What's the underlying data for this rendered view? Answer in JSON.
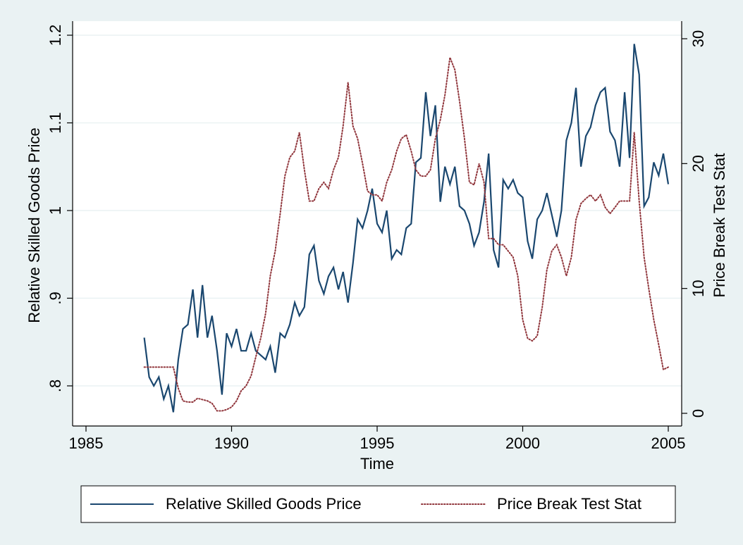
{
  "chart_data": {
    "type": "line",
    "x_label": "Time",
    "y_label": "Relative Skilled Goods Price",
    "y2_label": "Price Break Test Stat",
    "xlim": [
      1985,
      2005
    ],
    "xticks": [
      1985,
      1990,
      1995,
      2000,
      2005
    ],
    "ylim": [
      0.8,
      1.2
    ],
    "yticks": [
      {
        "value": 0.8,
        "label": ".8"
      },
      {
        "value": 0.9,
        "label": ".9"
      },
      1,
      1.1,
      1.2
    ],
    "y2lim": [
      0,
      30
    ],
    "y2ticks": [
      0,
      10,
      20,
      30
    ],
    "grid": true,
    "legend": "bottom",
    "x": [
      1987,
      1987.17,
      1987.33,
      1987.5,
      1987.67,
      1987.83,
      1988,
      1988.17,
      1988.33,
      1988.5,
      1988.67,
      1988.83,
      1989,
      1989.17,
      1989.33,
      1989.5,
      1989.67,
      1989.83,
      1990,
      1990.17,
      1990.33,
      1990.5,
      1990.67,
      1990.83,
      1991,
      1991.17,
      1991.33,
      1991.5,
      1991.67,
      1991.83,
      1992,
      1992.17,
      1992.33,
      1992.5,
      1992.67,
      1992.83,
      1993,
      1993.17,
      1993.33,
      1993.5,
      1993.67,
      1993.83,
      1994,
      1994.17,
      1994.33,
      1994.5,
      1994.67,
      1994.83,
      1995,
      1995.17,
      1995.33,
      1995.5,
      1995.67,
      1995.83,
      1996,
      1996.17,
      1996.33,
      1996.5,
      1996.67,
      1996.83,
      1997,
      1997.17,
      1997.33,
      1997.5,
      1997.67,
      1997.83,
      1998,
      1998.17,
      1998.33,
      1998.5,
      1998.67,
      1998.83,
      1999,
      1999.17,
      1999.33,
      1999.5,
      1999.67,
      1999.83,
      2000,
      2000.17,
      2000.33,
      2000.5,
      2000.67,
      2000.83,
      2001,
      2001.17,
      2001.33,
      2001.5,
      2001.67,
      2001.83,
      2002,
      2002.17,
      2002.33,
      2002.5,
      2002.67,
      2002.83,
      2003,
      2003.17,
      2003.33,
      2003.5,
      2003.67,
      2003.83,
      2004,
      2004.17,
      2004.33,
      2004.5,
      2004.67,
      2004.83,
      2005
    ],
    "series": [
      {
        "name": "Relative Skilled Goods Price",
        "color": "#1a476f",
        "style": "solid",
        "values": [
          0.855,
          0.81,
          0.8,
          0.81,
          0.785,
          0.8,
          0.77,
          0.83,
          0.865,
          0.87,
          0.91,
          0.855,
          0.915,
          0.855,
          0.88,
          0.84,
          0.79,
          0.86,
          0.845,
          0.865,
          0.84,
          0.84,
          0.86,
          0.84,
          0.835,
          0.83,
          0.845,
          0.815,
          0.86,
          0.855,
          0.87,
          0.895,
          0.88,
          0.89,
          0.95,
          0.96,
          0.92,
          0.905,
          0.925,
          0.935,
          0.91,
          0.93,
          0.895,
          0.94,
          0.99,
          0.98,
          1.0,
          1.025,
          0.985,
          0.975,
          1.0,
          0.945,
          0.955,
          0.95,
          0.98,
          0.985,
          1.055,
          1.06,
          1.135,
          1.085,
          1.12,
          1.01,
          1.05,
          1.03,
          1.05,
          1.005,
          1.0,
          0.985,
          0.96,
          0.975,
          1.01,
          1.065,
          0.955,
          0.935,
          1.035,
          1.025,
          1.035,
          1.02,
          1.015,
          0.965,
          0.945,
          0.99,
          1.0,
          1.02,
          0.995,
          0.97,
          1.0,
          1.08,
          1.1,
          1.14,
          1.05,
          1.085,
          1.095,
          1.12,
          1.135,
          1.14,
          1.09,
          1.08,
          1.05,
          1.135,
          1.06,
          1.19,
          1.155,
          1.005,
          1.015,
          1.055,
          1.04,
          1.065,
          1.03
        ]
      },
      {
        "name": "Price Break Test Stat",
        "color": "#90353b",
        "style": "dotted",
        "axis": "y2",
        "values": [
          3.7,
          3.7,
          3.7,
          3.7,
          3.7,
          3.7,
          3.7,
          2.0,
          1.0,
          0.9,
          0.9,
          1.2,
          1.1,
          1.0,
          0.8,
          0.2,
          0.2,
          0.3,
          0.5,
          1.0,
          1.8,
          2.2,
          3.0,
          4.5,
          6,
          8,
          11,
          13,
          16,
          19,
          20.5,
          21,
          22.5,
          19.5,
          17,
          17,
          18,
          18.5,
          18,
          19.5,
          20.5,
          23,
          26.5,
          23,
          22,
          20,
          17.8,
          17.5,
          17.5,
          17,
          18.5,
          19.5,
          21,
          22,
          22.3,
          21,
          19.5,
          19,
          19,
          19.5,
          22,
          23.5,
          25.5,
          28.5,
          27.5,
          25,
          22,
          18.5,
          18.3,
          20,
          18.5,
          14,
          14,
          13.5,
          13.5,
          13,
          12.5,
          11,
          7.5,
          6,
          5.8,
          6.2,
          8.5,
          11.5,
          13,
          13.5,
          12.5,
          11,
          12.5,
          15.5,
          16.8,
          17.2,
          17.5,
          17,
          17.5,
          16.5,
          16,
          16.5,
          17,
          17,
          17,
          22.5,
          17,
          12.5,
          10,
          7.5,
          5.5,
          3.5,
          3.7
        ]
      }
    ]
  }
}
